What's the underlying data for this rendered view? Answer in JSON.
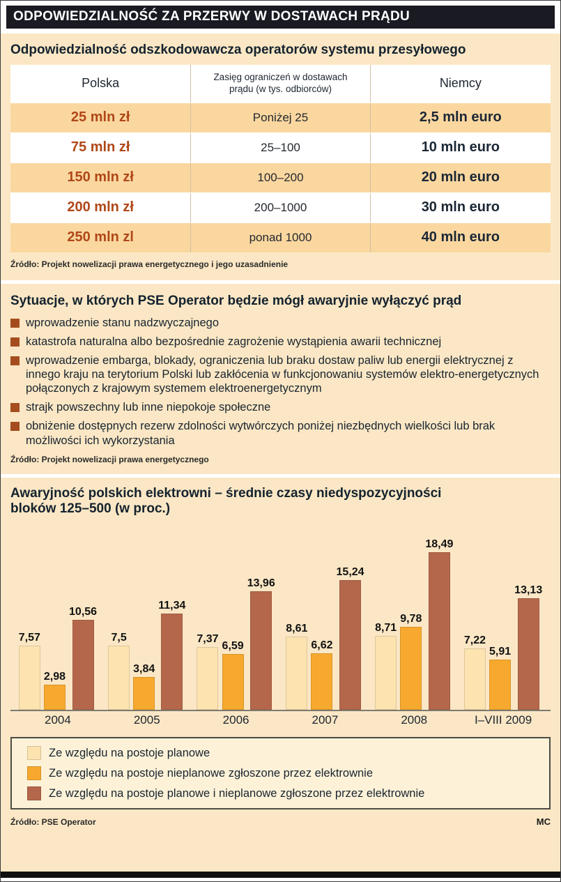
{
  "page": {
    "title": "ODPOWIEDZIALNOŚĆ ZA PRZERWY W DOSTAWACH PRĄDU",
    "credit": "MC"
  },
  "colors": {
    "page_bg": "#fbe7c5",
    "title_bar_bg": "#191a22",
    "table_row_peach": "#fbd7a0",
    "polska_value_red": "#b04718",
    "niemcy_value_navy": "#1b2735",
    "bullet_square": "#a54d1f",
    "bar_light": "#fce3b0",
    "bar_orange": "#f7a92f",
    "bar_brown": "#b5674b"
  },
  "table_section": {
    "title": "Odpowiedzialność odszkodowawcza operatorów systemu przesyłowego",
    "columns": [
      "Polska",
      "Zasięg ograniczeń w dostawach prądu (w tys. odbiorców)",
      "Niemcy"
    ],
    "rows": [
      {
        "polska": "25 mln zł",
        "zasieg": "Poniżej 25",
        "niemcy": "2,5 mln euro"
      },
      {
        "polska": "75 mln zł",
        "zasieg": "25–100",
        "niemcy": "10 mln euro"
      },
      {
        "polska": "150 mln zł",
        "zasieg": "100–200",
        "niemcy": "20 mln euro"
      },
      {
        "polska": "200 mln zł",
        "zasieg": "200–1000",
        "niemcy": "30 mln euro"
      },
      {
        "polska": "250 mln zl",
        "zasieg": "ponad 1000",
        "niemcy": "40 mln euro"
      }
    ],
    "source": "Źródło: Projekt nowelizacji prawa energetycznego i jego uzasadnienie"
  },
  "situations_section": {
    "title": "Sytuacje, w których PSE Operator będzie mógł awaryjnie wyłączyć prąd",
    "items": [
      "wprowadzenie stanu nadzwyczajnego",
      "katastrofa naturalna albo bezpośrednie zagrożenie wystąpienia awarii technicznej",
      "wprowadzenie embarga, blokady, ograniczenia lub braku dostaw paliw lub energii elektrycznej z innego kraju na terytorium Polski lub zakłócenia w funkcjonowaniu systemów elektro-energetycznych połączonych z krajowym systemem elektroenergetycznym",
      "strajk powszechny lub inne niepokoje społeczne",
      "obniżenie dostępnych rezerw zdolności wytwórczych poniżej niezbędnych wielkości lub brak możliwości ich wykorzystania"
    ],
    "source": "Źródło: Projekt nowelizacji prawa energetycznego"
  },
  "chart_section": {
    "title_line1": "Awaryjność polskich elektrowni – średnie czasy niedyspozycyjności",
    "title_line2": "bloków 125–500 (w proc.)",
    "source": "Źródło: PSE Operator"
  },
  "chart_data": {
    "type": "bar",
    "title": "Awaryjność polskich elektrowni – średnie czasy niedyspozycyjności bloków 125–500 (w proc.)",
    "categories": [
      "2004",
      "2005",
      "2006",
      "2007",
      "2008",
      "I–VIII 2009"
    ],
    "series": [
      {
        "name": "Ze względu na postoje planowe",
        "color": "#fce3b0",
        "values": [
          7.57,
          7.5,
          7.37,
          8.61,
          8.71,
          7.22
        ],
        "labels": [
          "7,57",
          "7,5",
          "7,37",
          "8,61",
          "8,71",
          "7,22"
        ]
      },
      {
        "name": "Ze względu na postoje nieplanowe zgłoszone przez elektrownie",
        "color": "#f7a92f",
        "values": [
          2.98,
          3.84,
          6.59,
          6.62,
          9.78,
          5.91
        ],
        "labels": [
          "2,98",
          "3,84",
          "6,59",
          "6,62",
          "9,78",
          "5,91"
        ]
      },
      {
        "name": "Ze względu na postoje planowe i nieplanowe zgłoszone przez elektrownie",
        "color": "#b5674b",
        "values": [
          10.56,
          11.34,
          13.96,
          15.24,
          18.49,
          13.13
        ],
        "labels": [
          "10,56",
          "11,34",
          "13,96",
          "15,24",
          "18,49",
          "13,13"
        ]
      }
    ],
    "ylim": [
      0,
      20
    ],
    "grid": false,
    "legend_position": "bottom",
    "value_labels": "above bars, comma decimal separator"
  }
}
